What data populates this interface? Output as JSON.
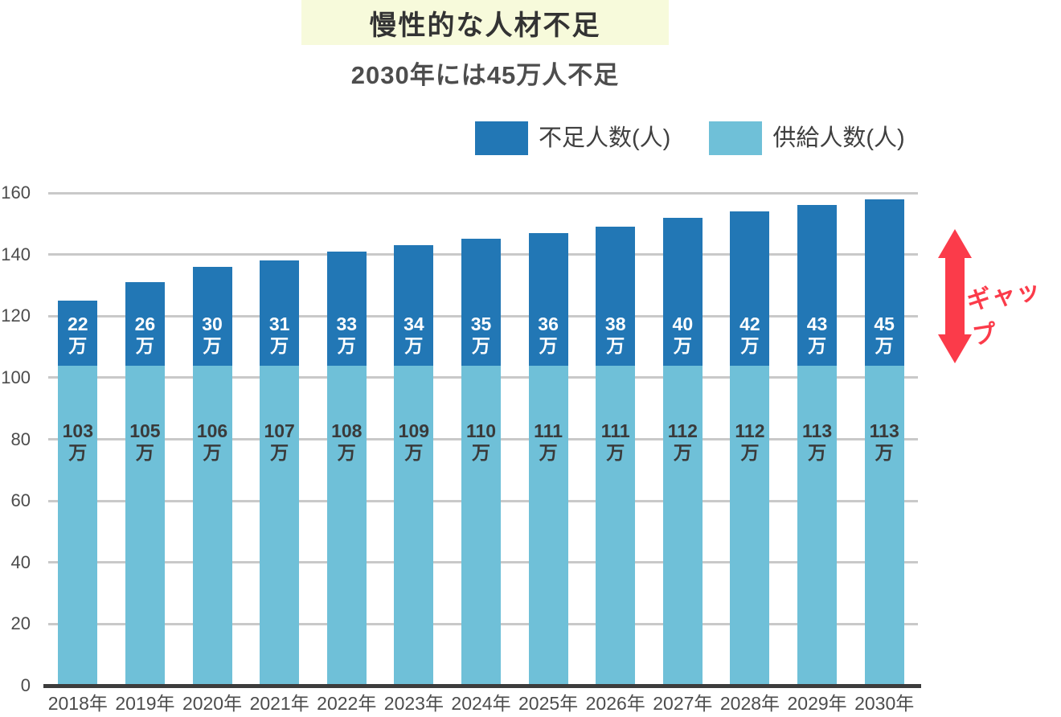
{
  "header": {
    "title": "慢性的な人材不足",
    "subtitle": "2030年には45万人不足",
    "banner_bg": "#F7FADB"
  },
  "gap": {
    "label": "ギャップ",
    "color": "#FB3B4A"
  },
  "chart_data": {
    "type": "bar",
    "stacked": true,
    "title": "慢性的な人材不足",
    "subtitle": "2030年には45万人不足",
    "categories": [
      "2018年",
      "2019年",
      "2020年",
      "2021年",
      "2022年",
      "2023年",
      "2024年",
      "2025年",
      "2026年",
      "2027年",
      "2028年",
      "2029年",
      "2030年"
    ],
    "series": [
      {
        "name": "不足人数(人)",
        "role": "shortage-top-segment",
        "color": "#2277B5",
        "label_color": "#FFFFFF",
        "values": [
          22,
          26,
          30,
          31,
          33,
          34,
          35,
          36,
          38,
          40,
          42,
          43,
          45
        ]
      },
      {
        "name": "供給人数(人)",
        "role": "supply-bottom-segment",
        "color": "#6FC0D8",
        "label_color": "#3A3A3A",
        "values": [
          103,
          105,
          106,
          107,
          108,
          109,
          110,
          111,
          111,
          112,
          112,
          113,
          113
        ]
      }
    ],
    "value_suffix": "万",
    "xlabel": "",
    "ylabel": "",
    "ylim": [
      0,
      160
    ],
    "ytick_step": 20,
    "grid": true,
    "legend_position": "top-right",
    "annotation": {
      "text": "ギャップ",
      "type": "vertical-double-arrow",
      "color": "#FB3B4A"
    },
    "layout_hints": {
      "bottom_segment_display_units": 104,
      "legend_order": [
        "不足人数(人)",
        "供給人数(人)"
      ]
    }
  }
}
